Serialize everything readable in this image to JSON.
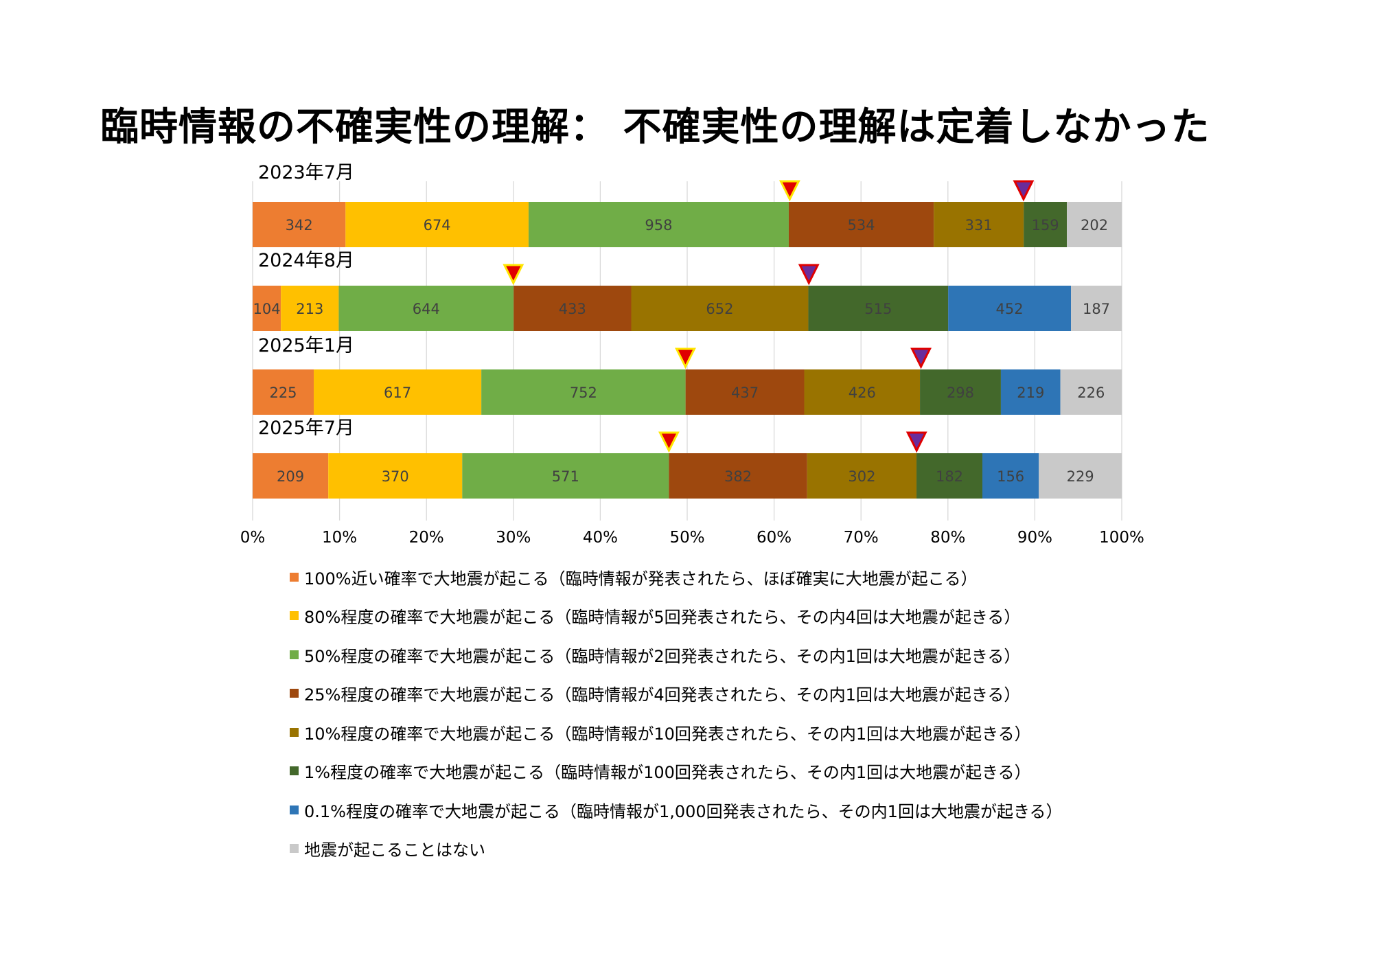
{
  "title": "臨時情報の不確実性の理解： 不確実性の理解は定着しなかった",
  "chart_data": {
    "type": "bar",
    "orientation": "horizontal",
    "stacked": "percent",
    "xlim": [
      0,
      100
    ],
    "x_ticks": [
      "0%",
      "10%",
      "20%",
      "30%",
      "40%",
      "50%",
      "60%",
      "70%",
      "80%",
      "90%",
      "100%"
    ],
    "grid": true,
    "legend_position": "bottom",
    "categories": [
      "2023年7月",
      "2024年8月",
      "2025年1月",
      "2025年7月"
    ],
    "series": [
      {
        "name": "100%近い確率で大地震が起こる（臨時情報が発表されたら、ほぼ確実に大地震が起こる）",
        "color": "#ED7D31",
        "label_color": "#404040",
        "values": [
          342,
          104,
          225,
          209
        ]
      },
      {
        "name": "80%程度の確率で大地震が起こる（臨時情報が5回発表されたら、その内4回は大地震が起きる）",
        "color": "#FFC000",
        "label_color": "#404040",
        "values": [
          674,
          213,
          617,
          370
        ]
      },
      {
        "name": "50%程度の確率で大地震が起こる（臨時情報が2回発表されたら、その内1回は大地震が起きる）",
        "color": "#70AD47",
        "label_color": "#404040",
        "values": [
          958,
          644,
          752,
          571
        ]
      },
      {
        "name": "25%程度の確率で大地震が起こる（臨時情報が4回発表されたら、その内1回は大地震が起きる）",
        "color": "#9E480E",
        "label_color": "#404040",
        "values": [
          534,
          433,
          437,
          382
        ]
      },
      {
        "name": "10%程度の確率で大地震が起こる（臨時情報が10回発表されたら、その内1回は大地震が起きる）",
        "color": "#997300",
        "label_color": "#404040",
        "values": [
          331,
          652,
          426,
          302
        ]
      },
      {
        "name": "1%程度の確率で大地震が起こる（臨時情報が100回発表されたら、その内1回は大地震が起きる）",
        "color": "#43682B",
        "label_color": "#404040",
        "values": [
          159,
          515,
          298,
          182
        ]
      },
      {
        "name": "0.1%程度の確率で大地震が起こる（臨時情報が1,000回発表されたら、その内1回は大地震が起きる）",
        "color": "#2E75B6",
        "label_color": "#404040",
        "values": [
          null,
          452,
          219,
          156
        ]
      },
      {
        "name": "地震が起こることはない",
        "color": "#C9C9C9",
        "label_color": "#404040",
        "values": [
          202,
          187,
          226,
          229
        ]
      }
    ],
    "markers": {
      "yellow_outline_triangle_percent": [
        61.8,
        30.0,
        49.8,
        47.9
      ],
      "purple_outline_triangle_percent": [
        88.7,
        64.0,
        76.9,
        76.4
      ]
    }
  }
}
